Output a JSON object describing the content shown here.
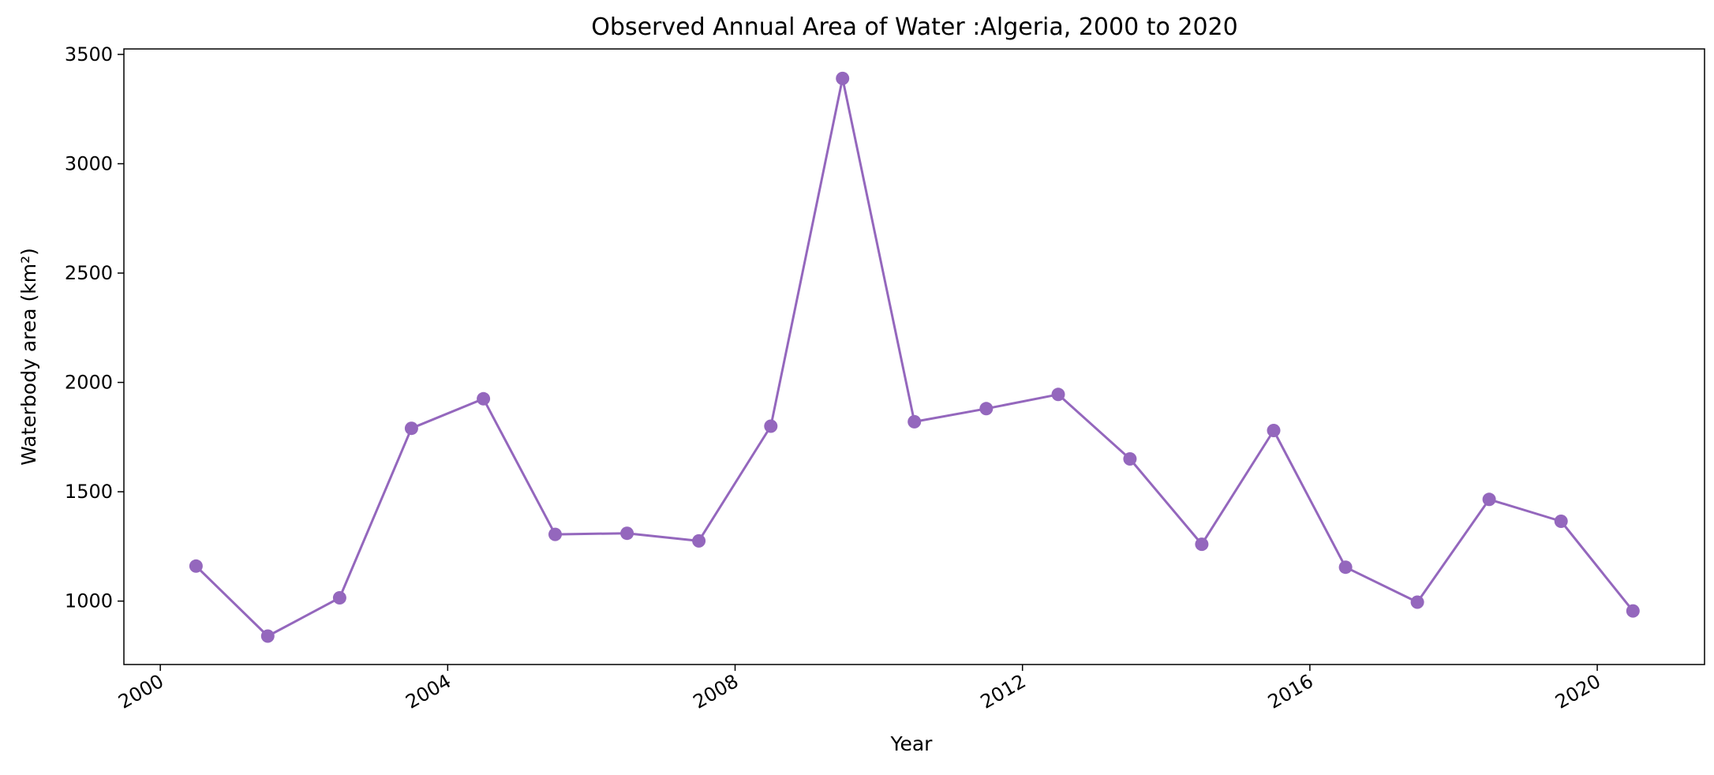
{
  "chart_data": {
    "type": "line",
    "title": "Observed Annual Area of Water :Algeria, 2000 to 2020",
    "xlabel": "Year",
    "ylabel": "Waterbody area (km²)",
    "x_ticks": [
      "2000",
      "2004",
      "2008",
      "2012",
      "2016",
      "2020"
    ],
    "y_ticks": [
      "1000",
      "1500",
      "2000",
      "2500",
      "3000",
      "3500"
    ],
    "xlim": [
      "1999-06-30",
      "2021-06-30"
    ],
    "ylim": [
      710,
      3525
    ],
    "grid": false,
    "legend": "none",
    "series": [
      {
        "color": "#9467bd",
        "marker": "circle",
        "points": [
          {
            "x": "2000-07-01",
            "y": 1160
          },
          {
            "x": "2001-07-01",
            "y": 840
          },
          {
            "x": "2002-07-01",
            "y": 1015
          },
          {
            "x": "2003-07-01",
            "y": 1790
          },
          {
            "x": "2004-07-01",
            "y": 1925
          },
          {
            "x": "2005-07-01",
            "y": 1305
          },
          {
            "x": "2006-07-01",
            "y": 1310
          },
          {
            "x": "2007-07-01",
            "y": 1275
          },
          {
            "x": "2008-07-01",
            "y": 1800
          },
          {
            "x": "2009-07-01",
            "y": 3390
          },
          {
            "x": "2010-07-01",
            "y": 1820
          },
          {
            "x": "2011-07-01",
            "y": 1880
          },
          {
            "x": "2012-07-01",
            "y": 1945
          },
          {
            "x": "2013-07-01",
            "y": 1650
          },
          {
            "x": "2014-07-01",
            "y": 1260
          },
          {
            "x": "2015-07-01",
            "y": 1780
          },
          {
            "x": "2016-07-01",
            "y": 1155
          },
          {
            "x": "2017-07-01",
            "y": 995
          },
          {
            "x": "2018-07-01",
            "y": 1465
          },
          {
            "x": "2019-07-01",
            "y": 1365
          },
          {
            "x": "2020-07-01",
            "y": 955
          }
        ]
      }
    ]
  }
}
